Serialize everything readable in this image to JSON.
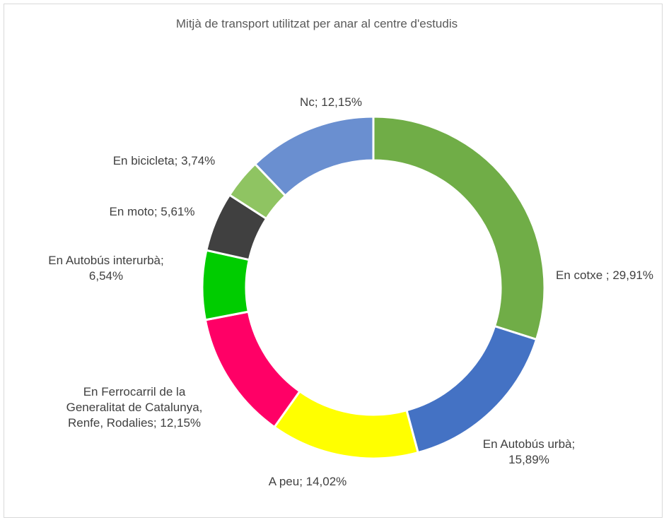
{
  "chart_data": {
    "type": "donut",
    "title": "Mitjà de transport utilitzat per anar al centre d'estudis",
    "values": [
      29.91,
      15.89,
      14.02,
      12.15,
      6.54,
      5.61,
      3.74,
      12.15
    ],
    "value_labels": [
      "En cotxe ; 29,91%",
      "En Autobús urbà; 15,89%",
      "A peu; 14,02%",
      "En Ferrocarril de la Generalitat de Catalunya, Renfe, Rodalies; 12,15%",
      "En Autobús interurbà; 6,54%",
      "En moto; 5,61%",
      "En bicicleta; 3,74%",
      "Nc; 12,15%"
    ],
    "colors": [
      "#70ad47",
      "#4472c4",
      "#ffff00",
      "#ff0066",
      "#00cc00",
      "#404040",
      "#8fc462",
      "#6a8fd0"
    ]
  }
}
